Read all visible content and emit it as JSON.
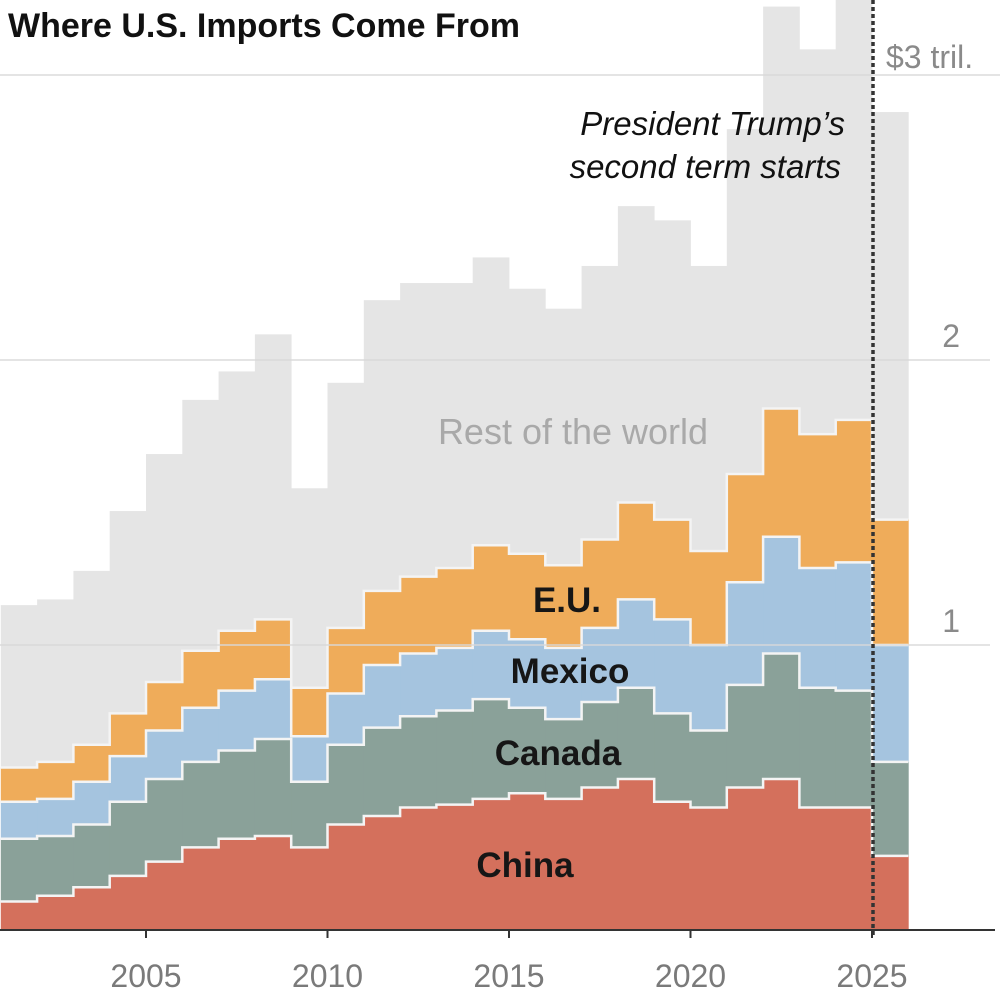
{
  "chart_data": {
    "type": "bar",
    "stacked": true,
    "title": "Where U.S. Imports Come From",
    "years": [
      2001,
      2002,
      2003,
      2004,
      2005,
      2006,
      2007,
      2008,
      2009,
      2010,
      2011,
      2012,
      2013,
      2014,
      2015,
      2016,
      2017,
      2018,
      2019,
      2020,
      2021,
      2022,
      2023,
      2024,
      2025
    ],
    "series": [
      {
        "name": "China",
        "color": "#d4705c",
        "values": [
          0.1,
          0.12,
          0.15,
          0.19,
          0.24,
          0.29,
          0.32,
          0.33,
          0.29,
          0.37,
          0.4,
          0.43,
          0.44,
          0.46,
          0.48,
          0.46,
          0.5,
          0.53,
          0.45,
          0.43,
          0.5,
          0.53,
          0.43,
          0.43,
          0.26
        ]
      },
      {
        "name": "Canada",
        "color": "#8aa199",
        "values": [
          0.22,
          0.21,
          0.22,
          0.26,
          0.29,
          0.3,
          0.31,
          0.34,
          0.23,
          0.28,
          0.31,
          0.32,
          0.33,
          0.35,
          0.3,
          0.28,
          0.3,
          0.32,
          0.31,
          0.27,
          0.36,
          0.44,
          0.42,
          0.41,
          0.33
        ]
      },
      {
        "name": "Mexico",
        "color": "#a5c4df",
        "values": [
          0.13,
          0.13,
          0.15,
          0.16,
          0.17,
          0.19,
          0.21,
          0.21,
          0.16,
          0.18,
          0.22,
          0.22,
          0.22,
          0.24,
          0.24,
          0.25,
          0.26,
          0.31,
          0.33,
          0.3,
          0.36,
          0.41,
          0.42,
          0.45,
          0.41
        ]
      },
      {
        "name": "E.U.",
        "color": "#efac5a",
        "values": [
          0.12,
          0.13,
          0.13,
          0.15,
          0.17,
          0.2,
          0.21,
          0.21,
          0.17,
          0.23,
          0.26,
          0.27,
          0.28,
          0.3,
          0.3,
          0.29,
          0.31,
          0.34,
          0.35,
          0.33,
          0.38,
          0.45,
          0.47,
          0.5,
          0.44
        ]
      },
      {
        "name": "Rest of the world",
        "color": "#e5e5e5",
        "values": [
          0.57,
          0.57,
          0.61,
          0.71,
          0.8,
          0.88,
          0.91,
          1.0,
          0.7,
          0.86,
          1.02,
          1.03,
          1.0,
          1.01,
          0.93,
          0.9,
          0.96,
          1.04,
          1.05,
          1.0,
          1.21,
          1.41,
          1.35,
          1.48,
          1.43
        ]
      }
    ],
    "xlim": [
      2001,
      2028.4
    ],
    "ylim": [
      0,
      3.26
    ],
    "yticks": [
      {
        "value": 1,
        "label": "1"
      },
      {
        "value": 2,
        "label": "2"
      },
      {
        "value": 3,
        "label": "$3 tril."
      }
    ],
    "xticks": [
      {
        "value": 2005,
        "label": "2005"
      },
      {
        "value": 2010,
        "label": "2010"
      },
      {
        "value": 2015,
        "label": "2015"
      },
      {
        "value": 2020,
        "label": "2020"
      },
      {
        "value": 2025,
        "label": "2025"
      }
    ],
    "grid": true,
    "annotation": {
      "x": 2025,
      "lines": [
        "President Trump’s",
        "second term starts"
      ]
    },
    "labels": {
      "rest": "Rest of the world",
      "eu": "E.U.",
      "mexico": "Mexico",
      "canada": "Canada",
      "china": "China"
    }
  }
}
